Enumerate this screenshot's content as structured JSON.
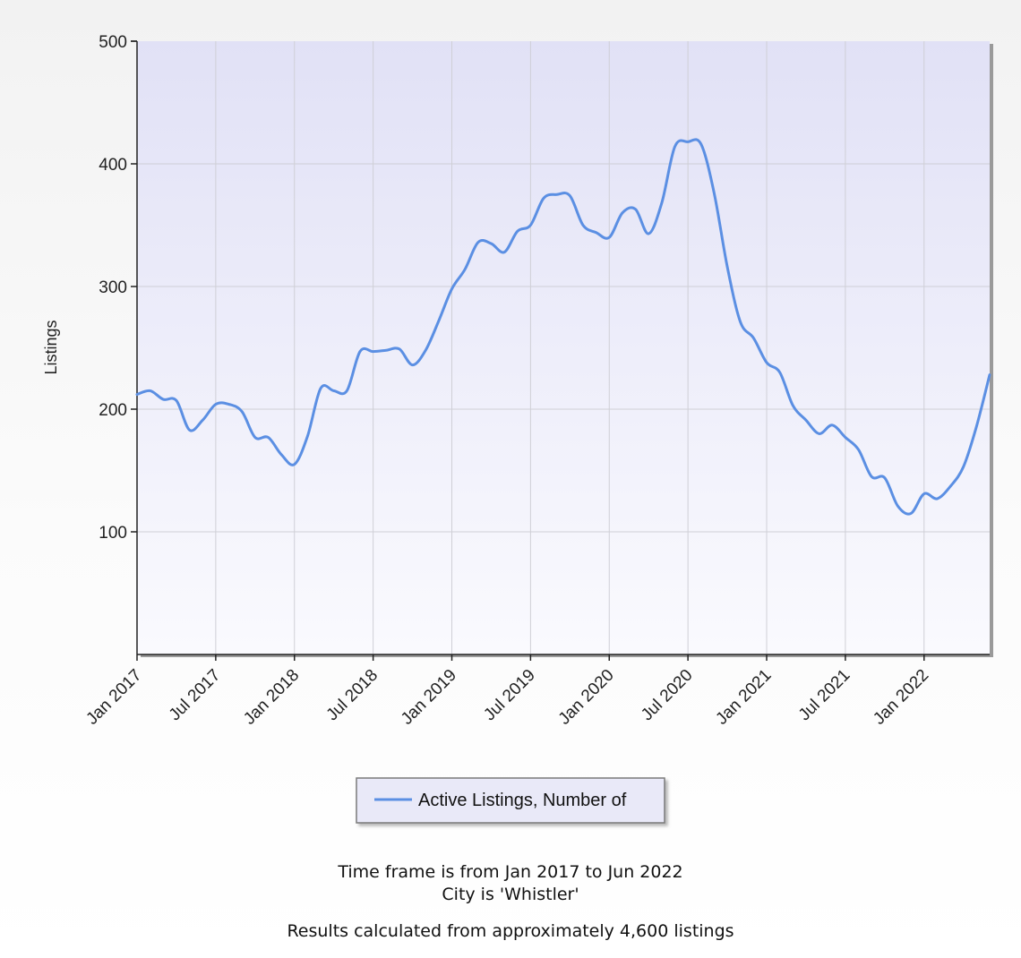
{
  "chart_data": {
    "type": "line",
    "ylabel": "Listings",
    "xlabel": "",
    "ylim": [
      0,
      500
    ],
    "yticks": [
      100,
      200,
      300,
      400,
      500
    ],
    "xlim": [
      "2017-01",
      "2022-06"
    ],
    "xticks": [
      "Jan 2017",
      "Jul 2017",
      "Jan 2018",
      "Jul 2018",
      "Jan 2019",
      "Jul 2019",
      "Jan 2020",
      "Jul 2020",
      "Jan 2021",
      "Jul 2021",
      "Jan 2022"
    ],
    "grid": true,
    "legend_position": "bottom",
    "series": [
      {
        "name": "Active Listings, Number of",
        "color": "#5b8fe3",
        "x": [
          "2017-01",
          "2017-02",
          "2017-03",
          "2017-04",
          "2017-05",
          "2017-06",
          "2017-07",
          "2017-08",
          "2017-09",
          "2017-10",
          "2017-11",
          "2017-12",
          "2018-01",
          "2018-02",
          "2018-03",
          "2018-04",
          "2018-05",
          "2018-06",
          "2018-07",
          "2018-08",
          "2018-09",
          "2018-10",
          "2018-11",
          "2018-12",
          "2019-01",
          "2019-02",
          "2019-03",
          "2019-04",
          "2019-05",
          "2019-06",
          "2019-07",
          "2019-08",
          "2019-09",
          "2019-10",
          "2019-11",
          "2019-12",
          "2020-01",
          "2020-02",
          "2020-03",
          "2020-04",
          "2020-05",
          "2020-06",
          "2020-07",
          "2020-08",
          "2020-09",
          "2020-10",
          "2020-11",
          "2020-12",
          "2021-01",
          "2021-02",
          "2021-03",
          "2021-04",
          "2021-05",
          "2021-06",
          "2021-07",
          "2021-08",
          "2021-09",
          "2021-10",
          "2021-11",
          "2021-12",
          "2022-01",
          "2022-02",
          "2022-03",
          "2022-04",
          "2022-05",
          "2022-06"
        ],
        "values": [
          212,
          215,
          208,
          207,
          183,
          191,
          204,
          204,
          198,
          177,
          177,
          163,
          155,
          178,
          217,
          215,
          215,
          247,
          247,
          248,
          249,
          236,
          248,
          272,
          298,
          314,
          336,
          335,
          328,
          345,
          350,
          372,
          375,
          374,
          350,
          344,
          340,
          360,
          363,
          343,
          368,
          414,
          418,
          416,
          376,
          316,
          271,
          258,
          238,
          230,
          203,
          191,
          180,
          187,
          177,
          167,
          145,
          144,
          121,
          115,
          131,
          127,
          137,
          153,
          186,
          228
        ]
      }
    ]
  },
  "footer": {
    "line1": "Time frame is from Jan 2017 to Jun 2022",
    "line2": "City is 'Whistler'",
    "line3": "Results calculated from approximately 4,600 listings"
  }
}
